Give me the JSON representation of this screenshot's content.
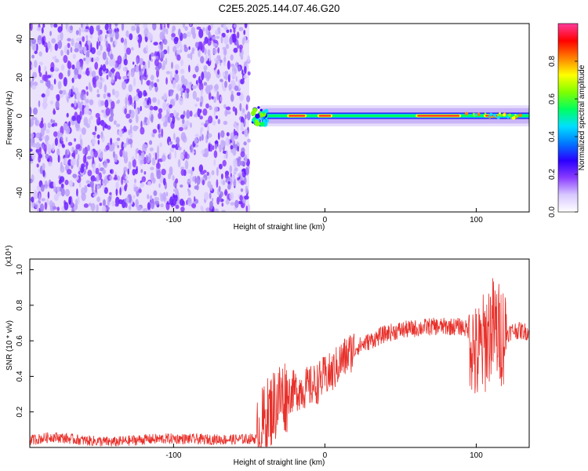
{
  "title": "C2E5.2025.144.07.46.G20",
  "chart_data": [
    {
      "type": "heatmap",
      "name": "spectrogram",
      "xlabel": "Height of straight line (km)",
      "ylabel": "Frequency (Hz)",
      "xlim": [
        -195,
        135
      ],
      "ylim": [
        -50,
        48
      ],
      "xticks": [
        -100,
        0,
        100
      ],
      "xtick_labels": [
        "-100",
        "0",
        "100"
      ],
      "yticks": [
        -40,
        -20,
        0,
        20,
        40
      ],
      "ytick_labels": [
        "-40",
        "-20",
        "0",
        "20",
        "40"
      ],
      "grid": false,
      "noise_region_x": [
        -195,
        -50
      ],
      "signal_band_hz": [
        -5,
        5
      ],
      "colorbar": {
        "label": "Normalized spectral amplitude",
        "range": [
          0.0,
          1.0
        ],
        "ticks": [
          0.0,
          0.2,
          0.4,
          0.6,
          0.8
        ],
        "tick_labels": [
          "0.0",
          "0.2",
          "0.4",
          "0.6",
          "0.8"
        ],
        "colors": [
          "#ffffff",
          "#d8c8ff",
          "#8a3cff",
          "#2a00ff",
          "#0078ff",
          "#00e0ff",
          "#00ff60",
          "#80ff00",
          "#ffff00",
          "#ff8000",
          "#ff0000",
          "#ff3c9c"
        ]
      }
    },
    {
      "type": "line",
      "name": "snr",
      "xlabel": "Height of straight line (km)",
      "ylabel": "SNR (10 * v/v)",
      "y_multiplier": "(x10⁴)",
      "xlim": [
        -195,
        135
      ],
      "ylim": [
        0,
        1.06
      ],
      "xticks": [
        -100,
        0,
        100
      ],
      "xtick_labels": [
        "-100",
        "0",
        "100"
      ],
      "yticks": [
        0.2,
        0.4,
        0.6,
        0.8,
        1.0
      ],
      "ytick_labels": [
        "0.2",
        "0.4",
        "0.6",
        "0.8",
        "1.0"
      ],
      "grid": false,
      "color": "#e8302a",
      "series": [
        {
          "x": [
            -195,
            -180,
            -160,
            -140,
            -120,
            -100,
            -80,
            -60,
            -45,
            -40,
            -35,
            -30,
            -25,
            -20,
            -15,
            -10,
            -5,
            0,
            5,
            10,
            20,
            30,
            40,
            50,
            60,
            70,
            80,
            90,
            95,
            100,
            105,
            110,
            115,
            120,
            125,
            135
          ],
          "values": [
            0.04,
            0.06,
            0.04,
            0.03,
            0.045,
            0.05,
            0.045,
            0.045,
            0.05,
            0.15,
            0.22,
            0.28,
            0.3,
            0.32,
            0.33,
            0.34,
            0.36,
            0.4,
            0.42,
            0.48,
            0.56,
            0.6,
            0.64,
            0.66,
            0.67,
            0.68,
            0.68,
            0.68,
            0.66,
            0.5,
            0.58,
            0.68,
            0.64,
            0.64,
            0.66,
            0.65
          ]
        }
      ]
    }
  ]
}
